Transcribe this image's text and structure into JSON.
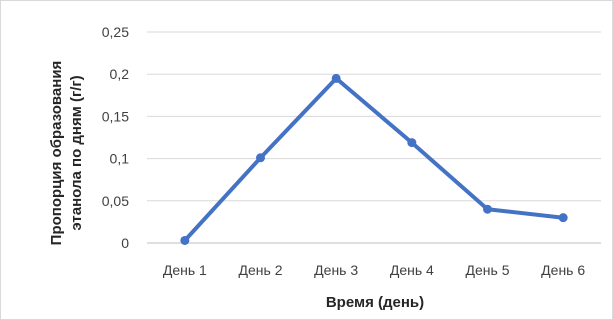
{
  "chart_data": {
    "type": "line",
    "title": "",
    "xlabel": "Время (день)",
    "ylabel_line1": "Пропорция образования",
    "ylabel_line2": "этанола по дням (г/г)",
    "categories": [
      "День 1",
      "День 2",
      "День 3",
      "День 4",
      "День 5",
      "День 6"
    ],
    "series": [
      {
        "values": [
          0.003,
          0.101,
          0.195,
          0.119,
          0.04,
          0.03
        ]
      }
    ],
    "ylim": [
      0,
      0.25
    ],
    "yticks": [
      "0",
      "0,05",
      "0,1",
      "0,15",
      "0,2",
      "0,25"
    ],
    "grid": true,
    "legend": "none",
    "colors": {
      "line": "#4472c4",
      "grid": "#d9d9d9"
    }
  }
}
